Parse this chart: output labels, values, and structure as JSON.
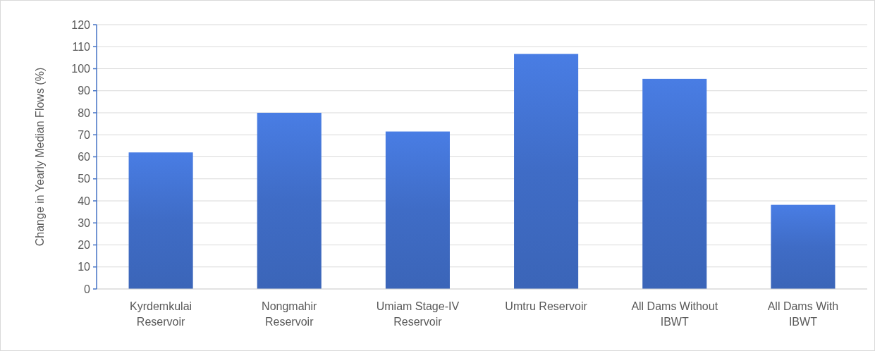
{
  "chart_data": {
    "type": "bar",
    "ylabel": "Change in Yearly Median Flows (%)",
    "categories": [
      "Kyrdemkulai Reservoir",
      "Nongmahir Reservoir",
      "Umiam Stage-IV Reservoir",
      "Umtru Reservoir",
      "All Dams Without IBWT",
      "All Dams With IBWT"
    ],
    "values": [
      62,
      80,
      71.5,
      106.7,
      95.4,
      38.2
    ],
    "color": "#3f6cc6",
    "ylim": [
      0,
      120
    ],
    "yticks": [
      0,
      10,
      20,
      30,
      40,
      50,
      60,
      70,
      80,
      90,
      100,
      110,
      120
    ],
    "grid": "y"
  }
}
